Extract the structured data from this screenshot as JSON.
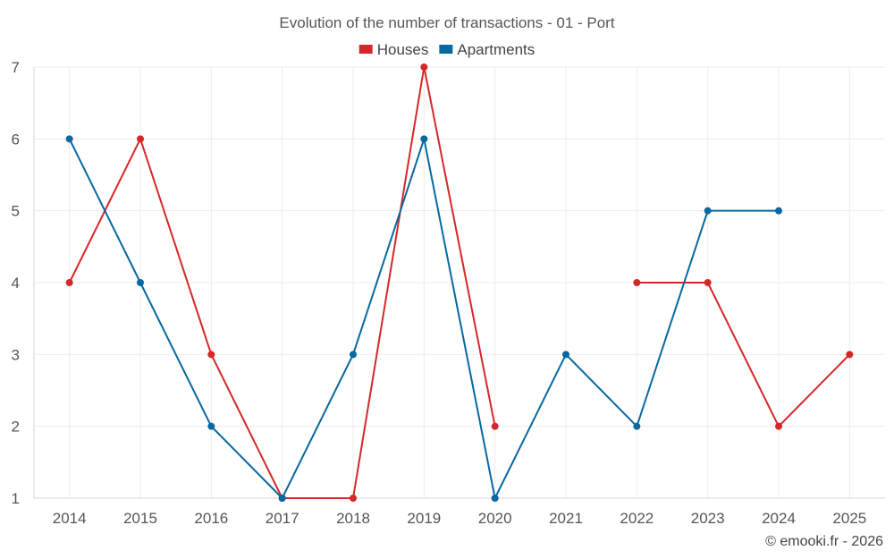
{
  "chart_data": {
    "type": "line",
    "title": "Evolution of the number of transactions - 01 - Port",
    "categories": [
      "2014",
      "2015",
      "2016",
      "2017",
      "2018",
      "2019",
      "2020",
      "2021",
      "2022",
      "2023",
      "2024",
      "2025"
    ],
    "ylim": [
      1,
      7
    ],
    "yticks": [
      1,
      2,
      3,
      4,
      5,
      6,
      7
    ],
    "grid": true,
    "legend_position": "top-center",
    "series": [
      {
        "name": "Houses",
        "color": "#d62728",
        "values": [
          4,
          6,
          3,
          1,
          1,
          7,
          2,
          null,
          4,
          4,
          2,
          3
        ]
      },
      {
        "name": "Apartments",
        "color": "#0868a0",
        "values": [
          6,
          4,
          2,
          1,
          3,
          6,
          1,
          3,
          2,
          5,
          5,
          null
        ]
      }
    ],
    "credit": "© emooki.fr - 2026"
  }
}
